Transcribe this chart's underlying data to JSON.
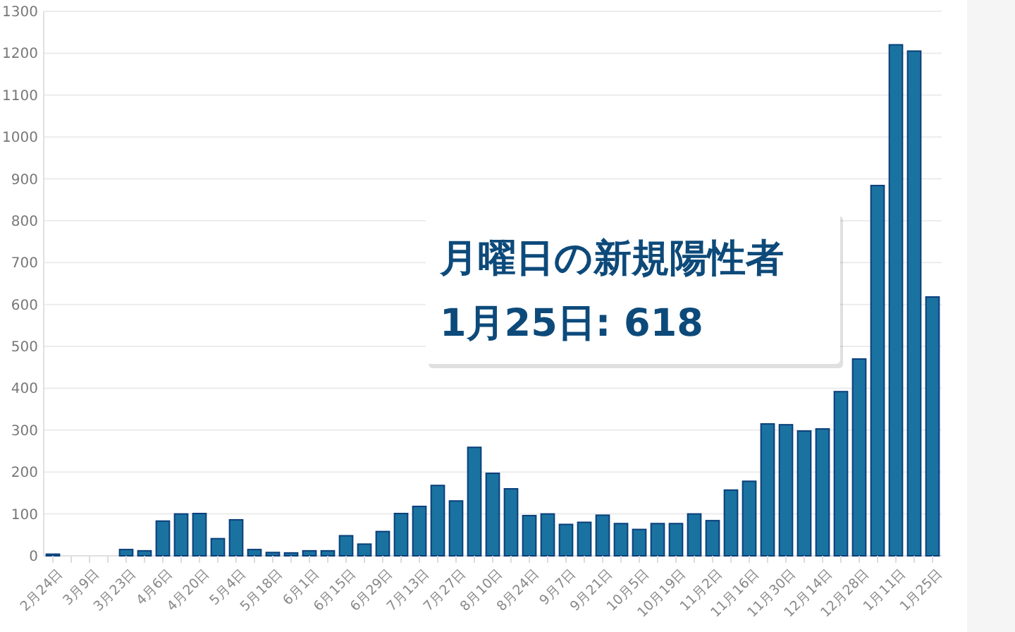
{
  "chart_data": {
    "type": "bar",
    "categories": [
      "2月24日",
      null,
      "3月9日",
      null,
      "3月23日",
      null,
      "4月6日",
      null,
      "4月20日",
      null,
      "5月4日",
      null,
      "5月18日",
      null,
      "6月1日",
      null,
      "6月15日",
      null,
      "6月29日",
      null,
      "7月13日",
      null,
      "7月27日",
      null,
      "8月10日",
      null,
      "8月24日",
      null,
      "9月7日",
      null,
      "9月21日",
      null,
      "10月5日",
      null,
      "10月19日",
      null,
      "11月2日",
      null,
      "11月16日",
      null,
      "11月30日",
      null,
      "12月14日",
      null,
      "12月28日",
      null,
      "1月11日",
      null,
      "1月25日"
    ],
    "values": [
      4,
      0,
      0,
      0,
      15,
      12,
      83,
      100,
      101,
      41,
      86,
      15,
      8,
      7,
      12,
      12,
      48,
      28,
      58,
      101,
      118,
      168,
      131,
      259,
      197,
      160,
      96,
      100,
      75,
      80,
      97,
      77,
      63,
      77,
      77,
      100,
      84,
      157,
      178,
      315,
      313,
      298,
      303,
      392,
      470,
      884,
      1220,
      1205,
      618
    ],
    "color": "#1a72a0",
    "ylim": [
      0,
      1300
    ],
    "yticks": [
      0,
      100,
      200,
      300,
      400,
      500,
      600,
      700,
      800,
      900,
      1000,
      1100,
      1200,
      1300
    ],
    "grid": "y",
    "annotations": [
      "月曜日の新規陽性者",
      "1月25日: 618"
    ]
  }
}
